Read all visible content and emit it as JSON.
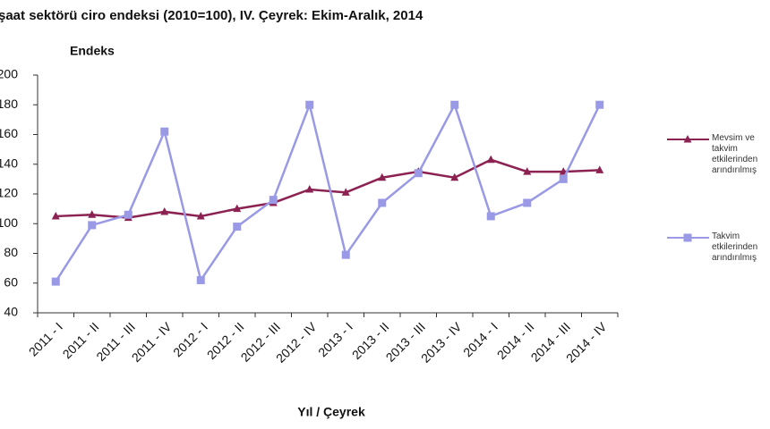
{
  "chart_data": {
    "type": "line",
    "title": "şaat sektörü ciro endeksi (2010=100), IV. Çeyrek: Ekim-Aralık, 2014",
    "y_label": "Endeks",
    "x_label": "Yıl / Çeyrek",
    "categories": [
      "2011 - I",
      "2011 - II",
      "2011 - III",
      "2011 - IV",
      "2012 - I",
      "2012 - II",
      "2012 - III",
      "2012 - IV",
      "2013 - I",
      "2013 - II",
      "2013 - III",
      "2013 - IV",
      "2014 - I",
      "2014 - II",
      "2014 - III",
      "2014 - IV"
    ],
    "series": [
      {
        "name": "Mevsim ve takvim etkilerinden arındırılmış",
        "color": "#8b2252",
        "marker": "triangle",
        "values": [
          105,
          106,
          104,
          108,
          105,
          110,
          114,
          123,
          121,
          131,
          135,
          131,
          143,
          135,
          135,
          136
        ]
      },
      {
        "name": "Takvim etkilerinden arındırılmış",
        "color": "#9999e6",
        "marker": "square",
        "values": [
          61,
          99,
          106,
          162,
          62,
          98,
          116,
          180,
          79,
          114,
          134,
          180,
          105,
          114,
          130,
          180
        ]
      }
    ],
    "ylim": [
      40,
      200
    ],
    "yticks": [
      40,
      60,
      80,
      100,
      120,
      140,
      160,
      180,
      200
    ],
    "grid": false,
    "legend": "right"
  }
}
